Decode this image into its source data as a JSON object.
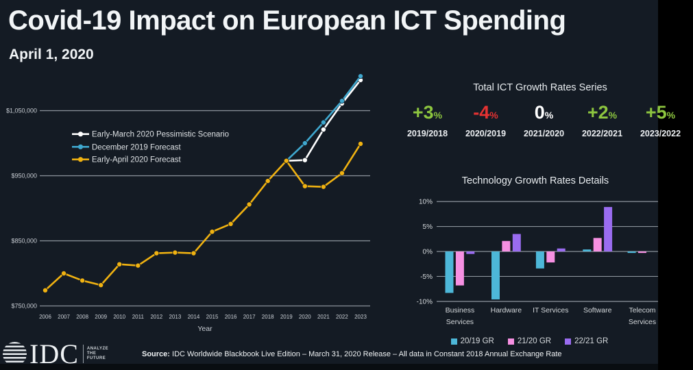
{
  "header": {
    "title": "Covid-19 Impact on European ICT Spending",
    "subtitle": "April 1, 2020"
  },
  "colors": {
    "background": "#141b24",
    "gridline": "#8b939b",
    "axis_text": "#c9ced4",
    "green": "#8dc63f",
    "red": "#e63232",
    "white": "#ffffff",
    "cyan_bar": "#4db7d8",
    "pink_bar": "#f690e2",
    "purple_bar": "#9a6cf0",
    "yellow_line": "#f0b211",
    "blue_line": "#3fa8cf"
  },
  "chart_data": [
    {
      "id": "spending_line",
      "type": "line",
      "xlabel": "Year",
      "x": [
        2006,
        2007,
        2008,
        2009,
        2010,
        2011,
        2012,
        2013,
        2014,
        2015,
        2016,
        2017,
        2018,
        2019,
        2020,
        2021,
        2022,
        2023
      ],
      "y_axis": {
        "min": 750000,
        "max": 1050000,
        "ticks": [
          {
            "value": 1050000,
            "label": "$1,050,000"
          },
          {
            "value": 950000,
            "label": "$950,000"
          },
          {
            "value": 850000,
            "label": "$850,000"
          },
          {
            "value": 750000,
            "label": "$750,000"
          }
        ]
      },
      "series": [
        {
          "name": "Early-March 2020 Pessimistic Scenario",
          "color": "#ffffff",
          "values": [
            null,
            null,
            null,
            null,
            null,
            null,
            null,
            null,
            null,
            null,
            null,
            null,
            null,
            973000,
            974000,
            1021000,
            1061000,
            1097000
          ]
        },
        {
          "name": "December 2019 Forecast",
          "color": "#3fa8cf",
          "values": [
            null,
            null,
            null,
            null,
            null,
            null,
            null,
            null,
            null,
            null,
            null,
            null,
            null,
            973000,
            1000000,
            1032000,
            1065000,
            1103000
          ]
        },
        {
          "name": "Early-April 2020 Forecast",
          "color": "#f0b211",
          "values": [
            774000,
            800000,
            789000,
            782000,
            814000,
            812000,
            831000,
            832000,
            831000,
            864000,
            876000,
            906000,
            942000,
            973000,
            934000,
            933000,
            954000,
            999000
          ]
        }
      ]
    },
    {
      "id": "tech_bars",
      "type": "bar",
      "categories": [
        [
          "Business",
          "Services"
        ],
        [
          "Hardware"
        ],
        [
          "IT Services"
        ],
        [
          "Software"
        ],
        [
          "Telecom",
          "Services"
        ]
      ],
      "yticks": [
        10,
        5,
        0,
        -5,
        -10
      ],
      "ytick_suffix": "%",
      "ylim": [
        -10,
        10
      ],
      "series": [
        {
          "name": "20/19 GR",
          "color": "#4db7d8",
          "values": [
            -8.3,
            -9.6,
            -3.4,
            0.4,
            -0.3
          ]
        },
        {
          "name": "21/20 GR",
          "color": "#f690e2",
          "values": [
            -6.8,
            2.1,
            -2.2,
            2.7,
            -0.3
          ]
        },
        {
          "name": "22/21 GR",
          "color": "#9a6cf0",
          "values": [
            -0.5,
            3.5,
            0.6,
            8.9,
            null
          ]
        }
      ]
    }
  ],
  "growth_series": {
    "title": "Total ICT Growth Rates Series",
    "items": [
      {
        "value": "+3",
        "suffix": "%",
        "label": "2019/2018",
        "color": "#8dc63f"
      },
      {
        "value": "-4",
        "suffix": "%",
        "label": "2020/2019",
        "color": "#e63232"
      },
      {
        "value": "0",
        "suffix": "%",
        "label": "2021/2020",
        "color": "#ffffff"
      },
      {
        "value": "+2",
        "suffix": "%",
        "label": "2022/2021",
        "color": "#8dc63f"
      },
      {
        "value": "+5",
        "suffix": "%",
        "label": "2023/2022",
        "color": "#8dc63f"
      }
    ]
  },
  "tech_details": {
    "title": "Technology Growth Rates Details"
  },
  "footer": {
    "source_label": "Source:",
    "source_text": "IDC Worldwide Blackbook Live Edition – March 31, 2020 Release – All data in Constant 2018 Annual Exchange Rate",
    "logo_text": "IDC",
    "logo_tagline_lines": [
      "ANALYZE",
      "THE",
      "FUTURE"
    ]
  }
}
